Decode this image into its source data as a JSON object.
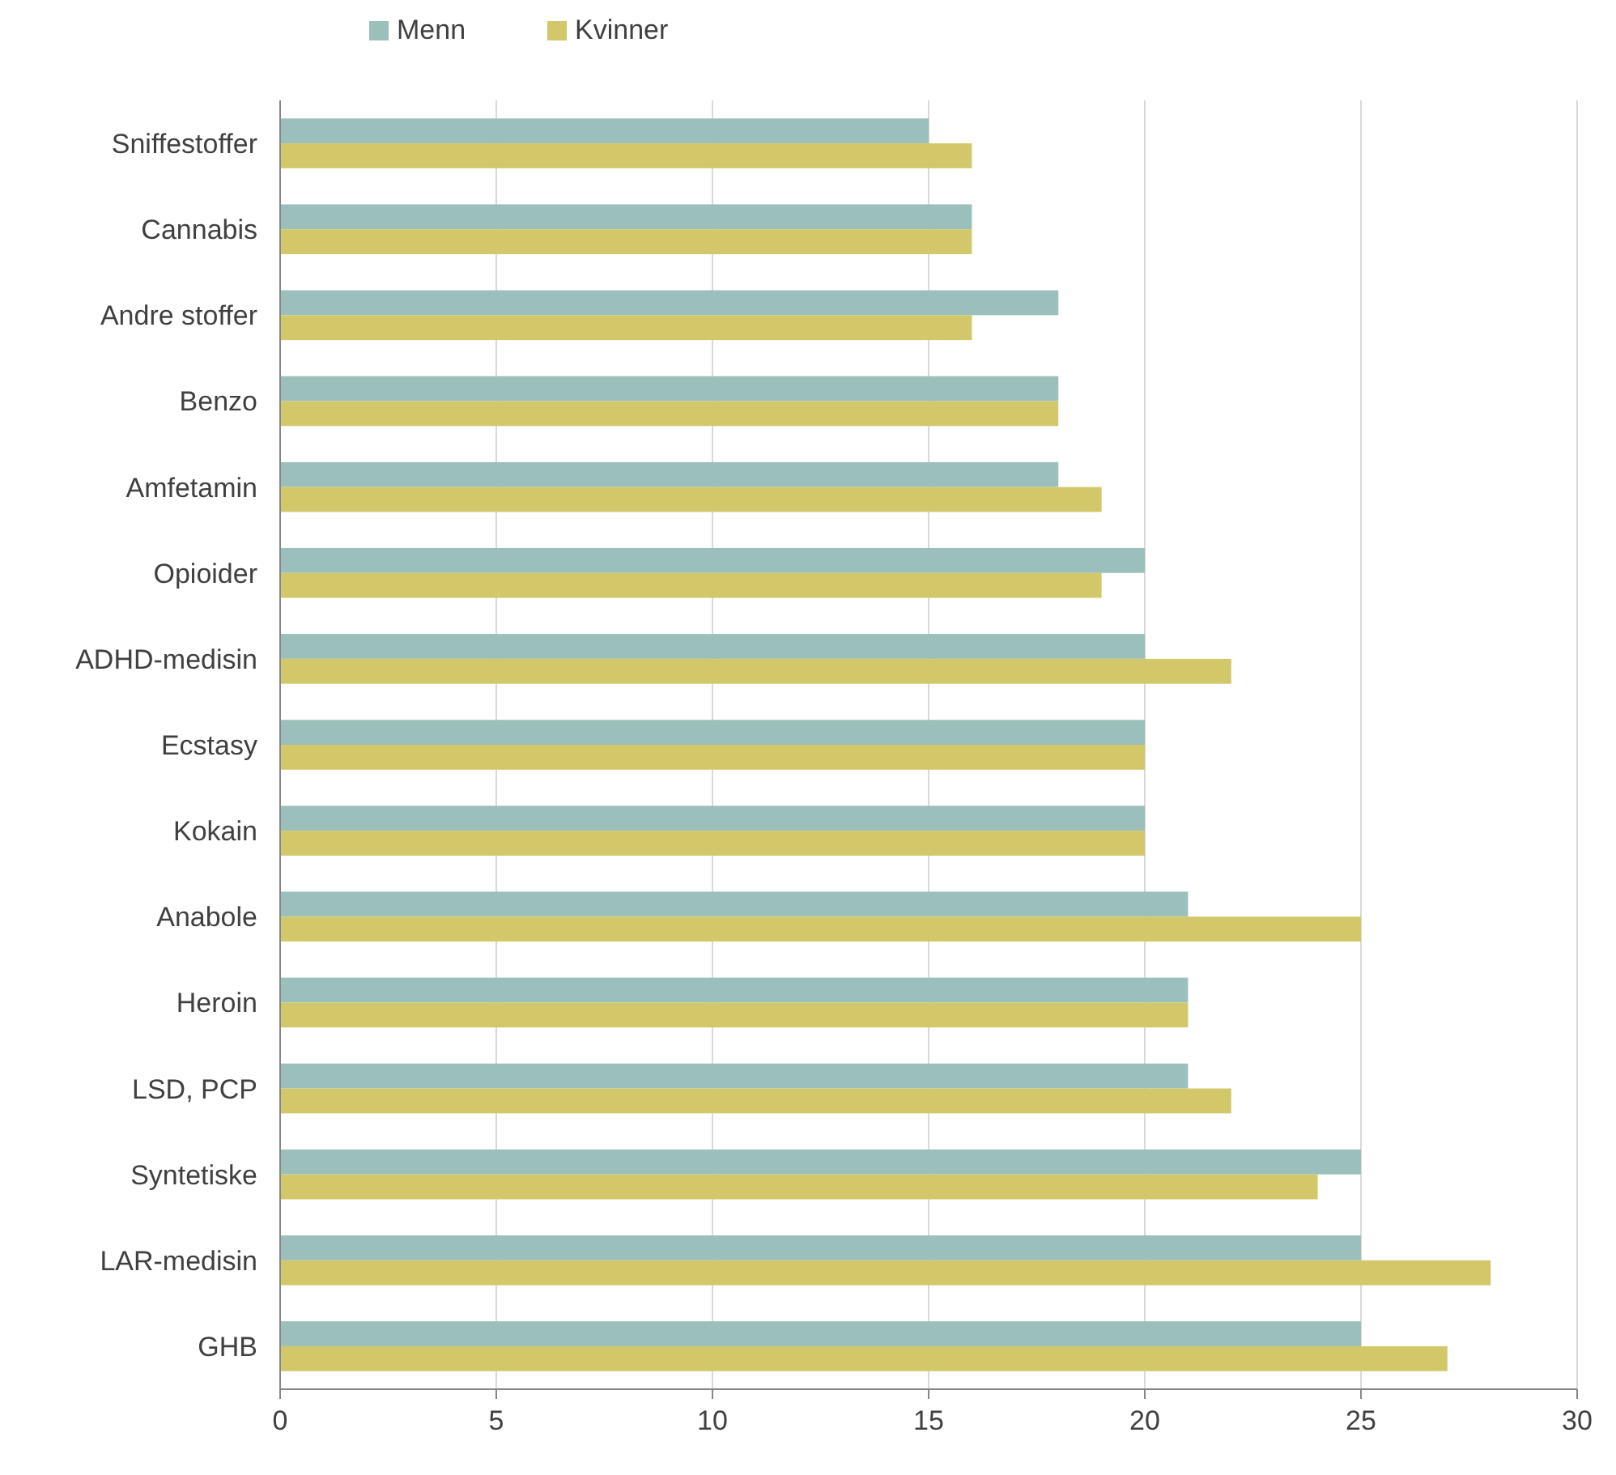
{
  "chart_data": {
    "type": "bar",
    "orientation": "horizontal",
    "categories": [
      "Sniffestoffer",
      "Cannabis",
      "Andre stoffer",
      "Benzo",
      "Amfetamin",
      "Opioider",
      "ADHD-medisin",
      "Ecstasy",
      "Kokain",
      "Anabole",
      "Heroin",
      "LSD, PCP",
      "Syntetiske",
      "LAR-medisin",
      "GHB"
    ],
    "series": [
      {
        "name": "Menn",
        "color": "#9bbfbb",
        "values": [
          15,
          16,
          18,
          18,
          18,
          20,
          20,
          20,
          20,
          21,
          21,
          21,
          25,
          25,
          25
        ]
      },
      {
        "name": "Kvinner",
        "color": "#d2c86a",
        "values": [
          16,
          16,
          16,
          18,
          19,
          19,
          22,
          20,
          20,
          25,
          21,
          22,
          24,
          28,
          27
        ]
      }
    ],
    "xlim": [
      0,
      30
    ],
    "xticks": [
      0,
      5,
      10,
      15,
      20,
      25,
      30
    ],
    "grid": "x",
    "legend": "top"
  }
}
